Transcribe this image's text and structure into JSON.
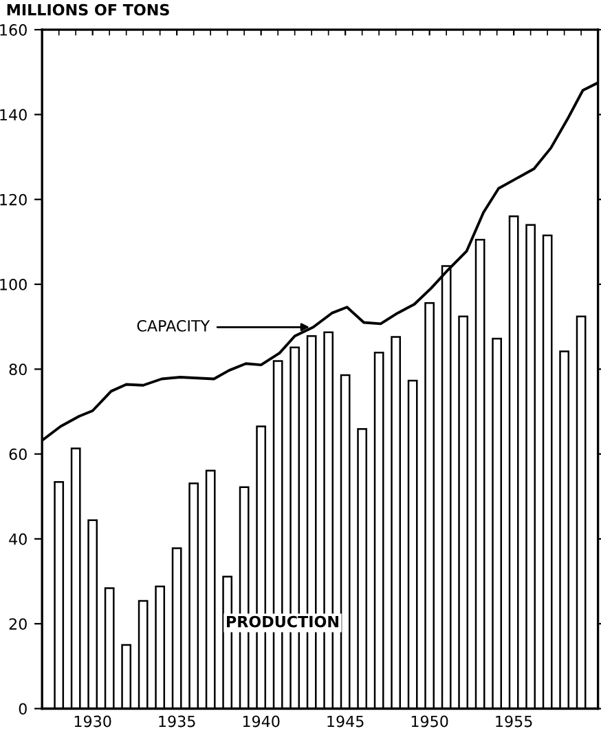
{
  "chart_data": {
    "type": "bar",
    "ylabel": "MILLIONS OF TONS",
    "xlim": [
      1927,
      1960
    ],
    "xticks": [
      1930,
      1935,
      1940,
      1945,
      1950,
      1955
    ],
    "ylim": [
      0,
      160
    ],
    "yticks": [
      0,
      20,
      40,
      60,
      80,
      100,
      120,
      140,
      160
    ],
    "grid": false,
    "annotations": [
      {
        "text": "CAPACITY",
        "x": 1943.1,
        "y": 89.9
      },
      "PRODUCTION"
    ],
    "series": [
      {
        "color": "#ffffff",
        "x": [
          1928,
          1929,
          1930,
          1931,
          1932,
          1933,
          1934,
          1935,
          1936,
          1937,
          1938,
          1939,
          1940,
          1941,
          1942,
          1943,
          1944,
          1945,
          1946,
          1947,
          1948,
          1949,
          1950,
          1951,
          1952,
          1953,
          1954,
          1955,
          1956,
          1957,
          1958,
          1959
        ],
        "values": [
          53.4,
          61.3,
          44.4,
          28.4,
          15.0,
          25.4,
          28.8,
          37.8,
          53.1,
          56.1,
          31.1,
          52.2,
          66.5,
          81.9,
          85.1,
          87.8,
          88.7,
          78.6,
          65.9,
          83.9,
          87.6,
          77.3,
          95.6,
          104.3,
          92.4,
          110.5,
          87.2,
          116.0,
          114.0,
          111.5,
          84.2,
          92.4
        ]
      },
      {
        "type": "line",
        "color": "#000000",
        "x": [
          1927.1,
          1928.1,
          1929.2,
          1930.0,
          1931.1,
          1932.0,
          1933.0,
          1934.1,
          1935.2,
          1937.2,
          1938.1,
          1939.1,
          1940.0,
          1941.1,
          1942.0,
          1943.1,
          1944.2,
          1945.1,
          1946.1,
          1947.1,
          1948.1,
          1949.1,
          1950.1,
          1951.1,
          1952.2,
          1953.2,
          1954.1,
          1955.1,
          1956.2,
          1957.2,
          1958.2,
          1959.1,
          1960.0
        ],
        "values": [
          63.5,
          66.5,
          68.9,
          70.2,
          74.8,
          76.4,
          76.2,
          77.7,
          78.1,
          77.7,
          79.7,
          81.3,
          81.0,
          83.8,
          87.8,
          89.9,
          93.2,
          94.6,
          91.0,
          90.7,
          93.2,
          95.3,
          99.1,
          103.4,
          107.8,
          116.9,
          122.6,
          124.8,
          127.2,
          132.1,
          139.0,
          145.7,
          147.5
        ]
      }
    ]
  }
}
